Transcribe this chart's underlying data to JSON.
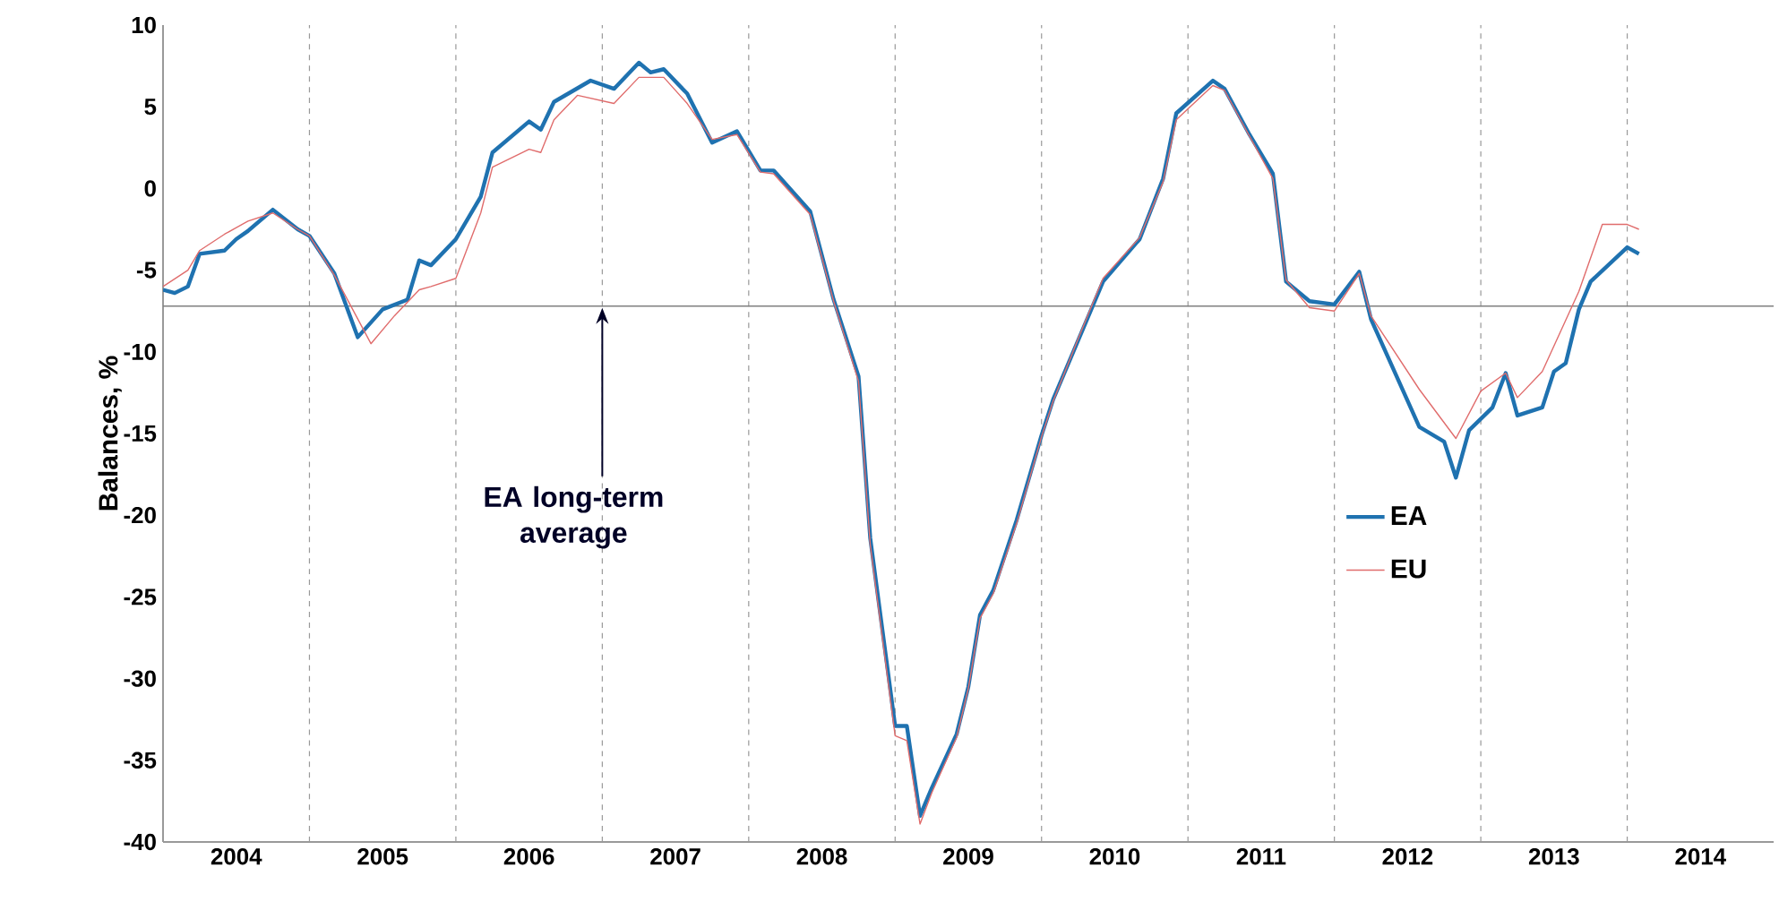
{
  "chart_data": {
    "type": "line",
    "ylabel": "Balances, %",
    "xlim": [
      "2004-01",
      "2015-01"
    ],
    "xticks": [
      {
        "value": "2004-07",
        "label": "2004"
      },
      {
        "value": "2005-01",
        "label": null
      },
      {
        "value": "2005-07",
        "label": "2005"
      },
      {
        "value": "2006-01",
        "label": null
      },
      {
        "value": "2006-07",
        "label": "2006"
      },
      {
        "value": "2007-01",
        "label": null
      },
      {
        "value": "2007-07",
        "label": "2007"
      },
      {
        "value": "2008-01",
        "label": null
      },
      {
        "value": "2008-07",
        "label": "2008"
      },
      {
        "value": "2009-01",
        "label": null
      },
      {
        "value": "2009-07",
        "label": "2009"
      },
      {
        "value": "2010-01",
        "label": null
      },
      {
        "value": "2010-07",
        "label": "2010"
      },
      {
        "value": "2011-01",
        "label": null
      },
      {
        "value": "2011-07",
        "label": "2011"
      },
      {
        "value": "2012-01",
        "label": null
      },
      {
        "value": "2012-07",
        "label": "2012"
      },
      {
        "value": "2013-01",
        "label": null
      },
      {
        "value": "2013-07",
        "label": "2013"
      },
      {
        "value": "2014-01",
        "label": null
      },
      {
        "value": "2014-07",
        "label": "2014"
      }
    ],
    "ylim": [
      -40,
      10
    ],
    "yticks": [
      -40,
      -35,
      -30,
      -25,
      -20,
      -15,
      -10,
      -5,
      0,
      5,
      10
    ],
    "grid": "x",
    "legend": "right",
    "ref_lines": [
      {
        "axis": "y",
        "value": -7.2,
        "color": "#808080"
      }
    ],
    "annotations": [
      {
        "text": "EA long-term average",
        "x": "2007-01",
        "y": -7.2
      }
    ],
    "series": [
      {
        "name": "EA",
        "color": "#1f72b0",
        "x": [
          "2004-01",
          "2004-02",
          "2004-03",
          "2004-04",
          "2004-06",
          "2004-07",
          "2004-08",
          "2004-10",
          "2004-12",
          "2005-01",
          "2005-03",
          "2005-05",
          "2005-07",
          "2005-09",
          "2005-10",
          "2005-11",
          "2006-01",
          "2006-03",
          "2006-04",
          "2006-07",
          "2006-08",
          "2006-09",
          "2006-12",
          "2007-02",
          "2007-04",
          "2007-05",
          "2007-06",
          "2007-08",
          "2007-10",
          "2007-12",
          "2008-02",
          "2008-03",
          "2008-06",
          "2008-08",
          "2008-10",
          "2008-11",
          "2009-01",
          "2009-02",
          "2009-03",
          "2009-04",
          "2009-06",
          "2009-07",
          "2009-08",
          "2009-09",
          "2009-11",
          "2010-01",
          "2010-02",
          "2010-04",
          "2010-06",
          "2010-09",
          "2010-11",
          "2010-12",
          "2011-03",
          "2011-04",
          "2011-06",
          "2011-08",
          "2011-09",
          "2011-11",
          "2012-01",
          "2012-03",
          "2012-04",
          "2012-08",
          "2012-10",
          "2012-11",
          "2012-12",
          "2013-02",
          "2013-03",
          "2013-04",
          "2013-06",
          "2013-07",
          "2013-08",
          "2013-09",
          "2013-10",
          "2014-01",
          "2014-02"
        ],
        "values": [
          -6.2,
          -6.4,
          -6.0,
          -4.0,
          -3.8,
          -3.1,
          -2.6,
          -1.3,
          -2.5,
          -2.9,
          -5.2,
          -9.1,
          -7.4,
          -6.8,
          -4.4,
          -4.7,
          -3.1,
          -0.5,
          2.2,
          4.1,
          3.6,
          5.3,
          6.6,
          6.1,
          7.7,
          7.1,
          7.3,
          5.8,
          2.8,
          3.5,
          1.1,
          1.1,
          -1.4,
          -6.8,
          -11.5,
          -21.4,
          -32.9,
          -32.9,
          -38.4,
          -36.7,
          -33.4,
          -30.5,
          -26.1,
          -24.6,
          -20.3,
          -15.1,
          -12.9,
          -9.3,
          -5.7,
          -3.1,
          0.6,
          4.6,
          6.6,
          6.1,
          3.3,
          0.9,
          -5.7,
          -6.9,
          -7.1,
          -5.1,
          -8.0,
          -14.6,
          -15.5,
          -17.7,
          -14.8,
          -13.4,
          -11.3,
          -13.9,
          -13.4,
          -11.2,
          -10.7,
          -7.4,
          -5.7,
          -3.6,
          -4.0
        ]
      },
      {
        "name": "EU",
        "color": "#e06c6c",
        "x": [
          "2004-01",
          "2004-03",
          "2004-04",
          "2004-06",
          "2004-08",
          "2004-10",
          "2004-12",
          "2005-01",
          "2005-03",
          "2005-06",
          "2005-08",
          "2005-10",
          "2005-11",
          "2006-01",
          "2006-03",
          "2006-04",
          "2006-07",
          "2006-08",
          "2006-09",
          "2006-11",
          "2007-02",
          "2007-04",
          "2007-06",
          "2007-08",
          "2007-10",
          "2007-12",
          "2008-02",
          "2008-03",
          "2008-06",
          "2008-08",
          "2008-10",
          "2008-11",
          "2009-01",
          "2009-02",
          "2009-03",
          "2009-04",
          "2009-06",
          "2009-07",
          "2009-08",
          "2009-09",
          "2009-11",
          "2010-01",
          "2010-02",
          "2010-04",
          "2010-06",
          "2010-09",
          "2010-11",
          "2010-12",
          "2011-03",
          "2011-04",
          "2011-06",
          "2011-08",
          "2011-09",
          "2011-11",
          "2012-01",
          "2012-03",
          "2012-04",
          "2012-08",
          "2012-11",
          "2013-01",
          "2013-03",
          "2013-04",
          "2013-06",
          "2013-09",
          "2013-11",
          "2014-01",
          "2014-02"
        ],
        "values": [
          -6.0,
          -5.0,
          -3.8,
          -2.8,
          -2.0,
          -1.5,
          -2.5,
          -2.9,
          -5.3,
          -9.5,
          -7.8,
          -6.2,
          -6.0,
          -5.5,
          -1.5,
          1.3,
          2.4,
          2.2,
          4.2,
          5.7,
          5.2,
          6.8,
          6.8,
          5.2,
          3.0,
          3.3,
          1.0,
          0.9,
          -1.6,
          -6.9,
          -11.8,
          -21.8,
          -33.5,
          -33.8,
          -38.9,
          -37.0,
          -33.6,
          -30.6,
          -26.3,
          -24.8,
          -20.5,
          -15.2,
          -13.0,
          -9.2,
          -5.5,
          -3.0,
          0.4,
          4.2,
          6.3,
          6.0,
          3.2,
          0.6,
          -5.6,
          -7.3,
          -7.5,
          -5.2,
          -7.8,
          -12.3,
          -15.3,
          -12.4,
          -11.3,
          -12.8,
          -11.2,
          -6.3,
          -2.2,
          -2.2,
          -2.5
        ]
      }
    ]
  }
}
